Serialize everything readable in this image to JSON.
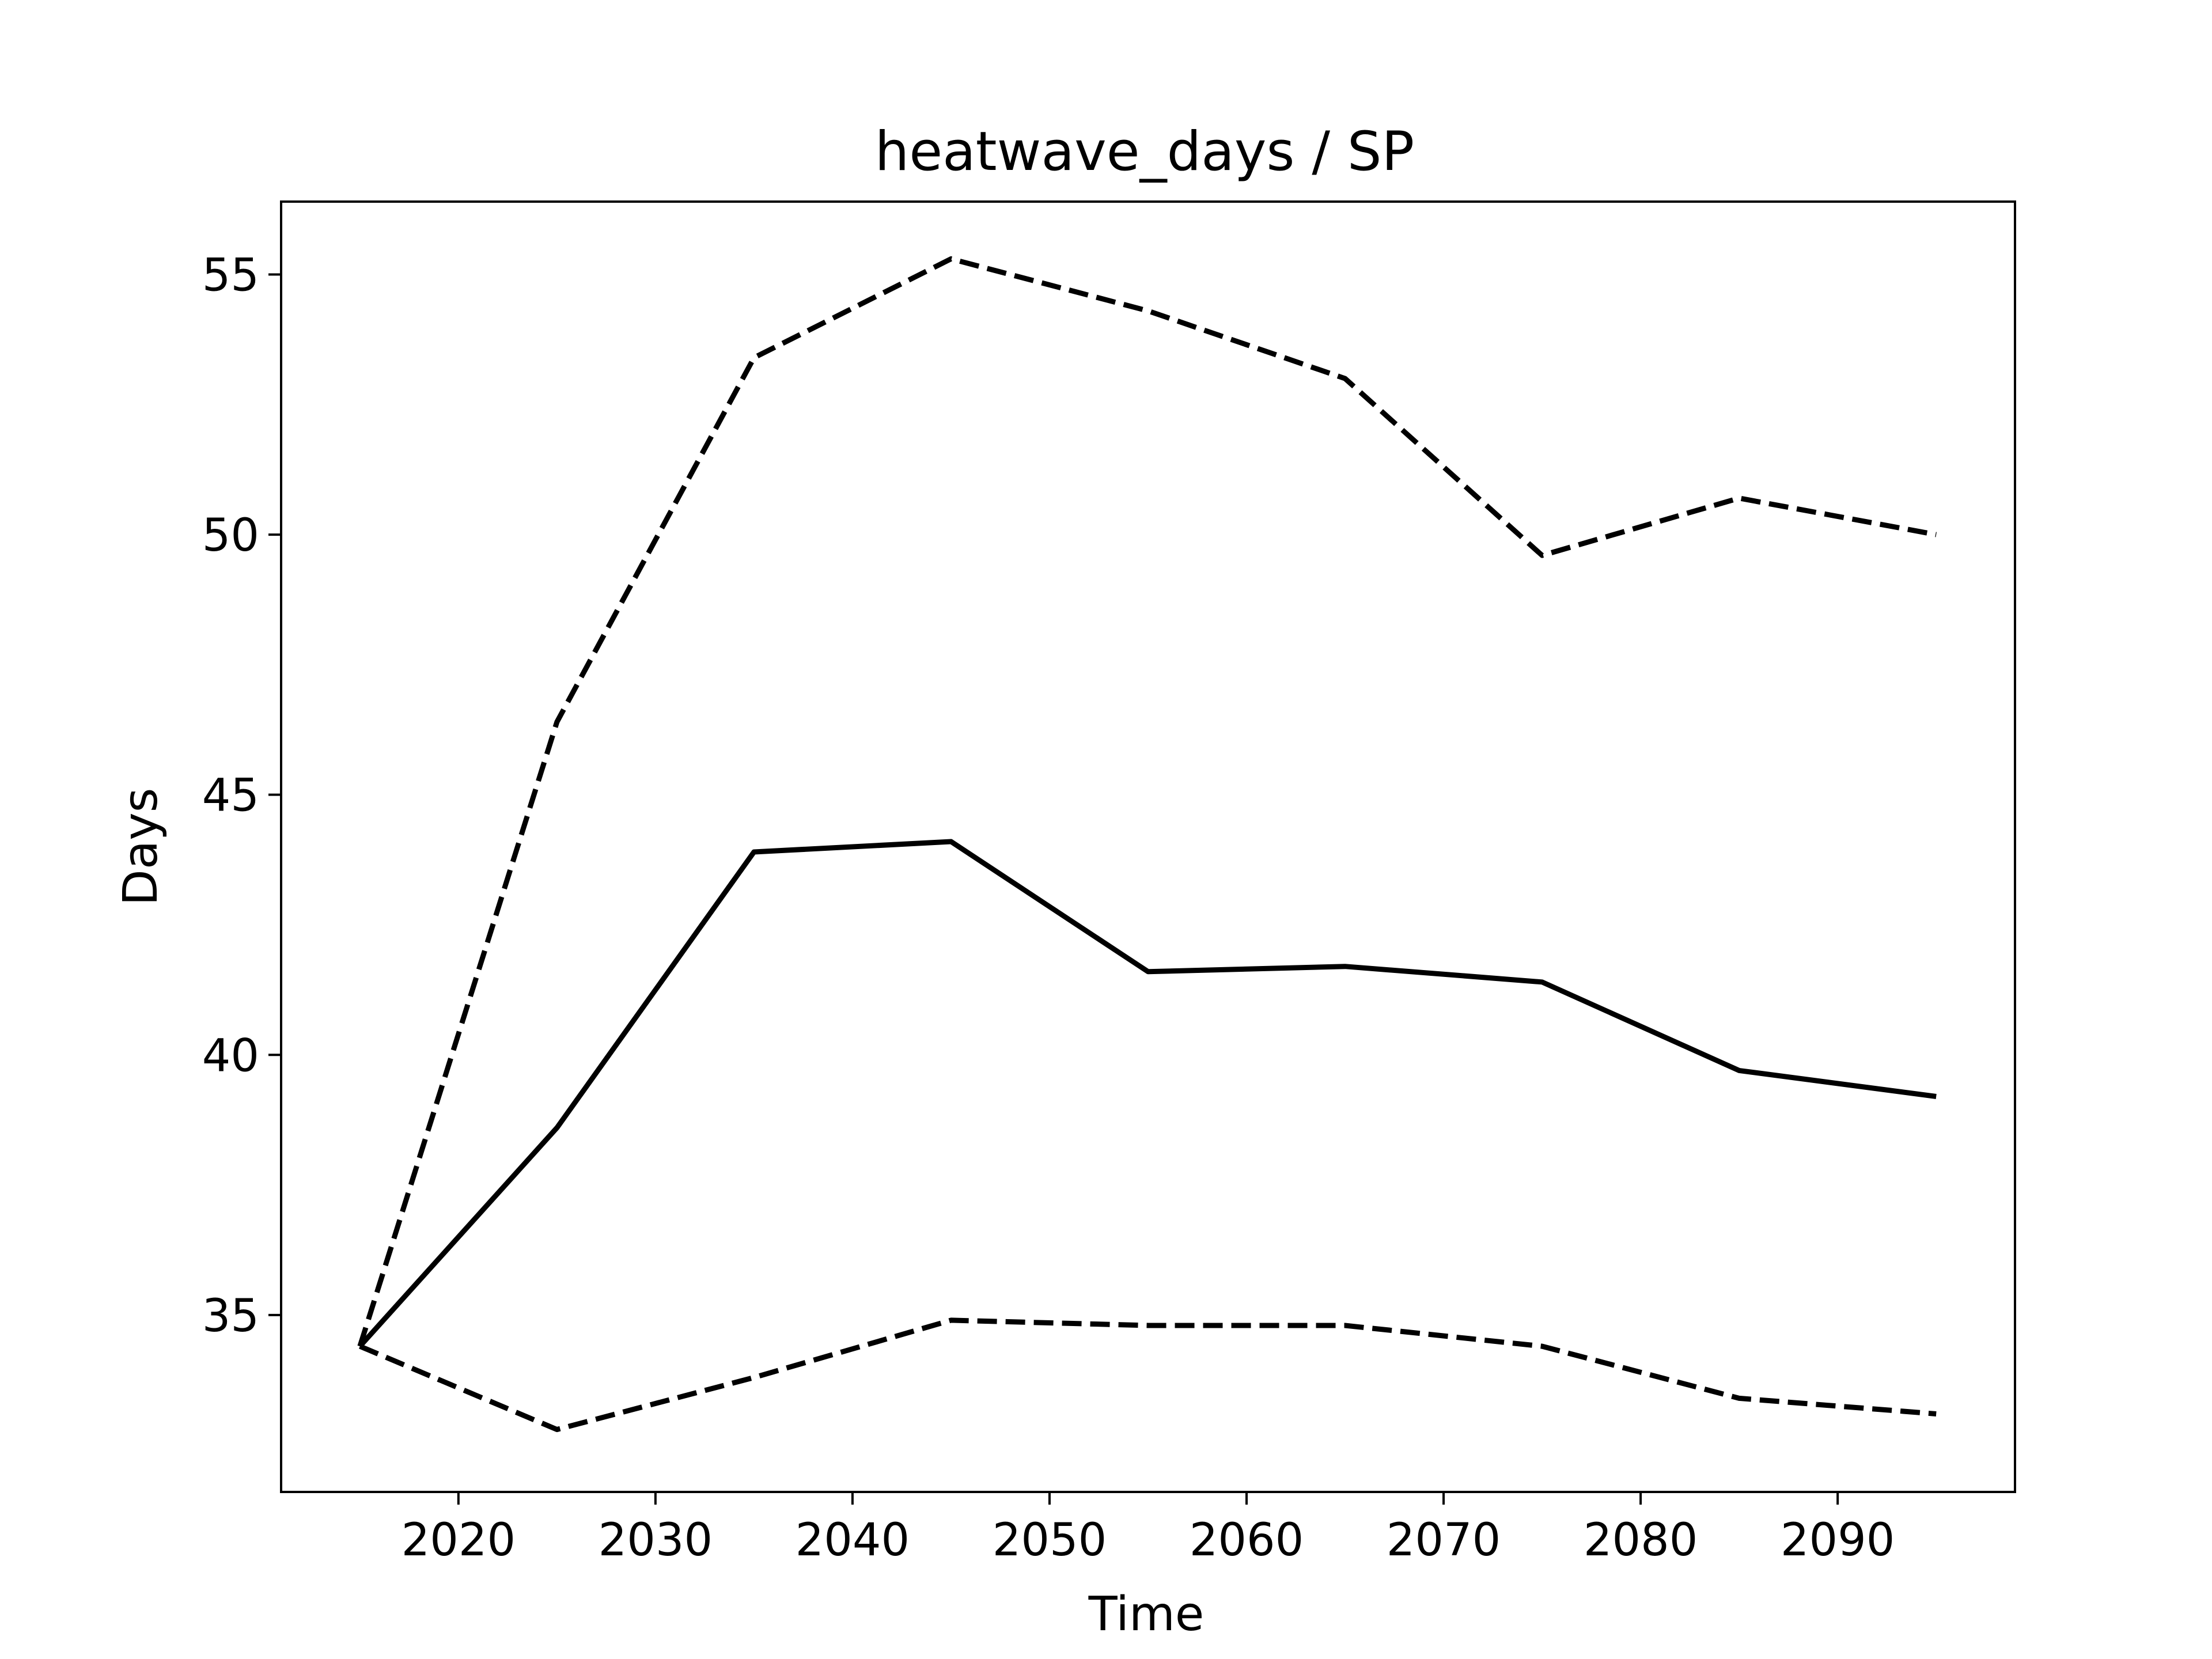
{
  "chart_data": {
    "type": "line",
    "title": "heatwave_days / SP",
    "xlabel": "Time",
    "ylabel": "Days",
    "x": [
      2015,
      2025,
      2035,
      2045,
      2055,
      2065,
      2075,
      2085,
      2095
    ],
    "xlim": [
      2011,
      2099
    ],
    "ylim": [
      31.6,
      56.4
    ],
    "xticks": [
      2020,
      2030,
      2040,
      2050,
      2060,
      2070,
      2080,
      2090
    ],
    "yticks": [
      35,
      40,
      45,
      50,
      55
    ],
    "grid": false,
    "legend": "none",
    "series": [
      {
        "id": "upper",
        "style": "dashed",
        "color": "#000000",
        "values": [
          34.4,
          46.4,
          53.4,
          55.3,
          54.3,
          53.0,
          49.6,
          50.7,
          50.0
        ]
      },
      {
        "id": "median",
        "style": "solid",
        "color": "#000000",
        "values": [
          34.4,
          38.6,
          43.9,
          44.1,
          41.6,
          41.7,
          41.4,
          39.7,
          39.2
        ]
      },
      {
        "id": "lower",
        "style": "dashed",
        "color": "#000000",
        "values": [
          34.4,
          32.8,
          33.8,
          34.9,
          34.8,
          34.8,
          34.4,
          33.4,
          33.1
        ]
      }
    ]
  }
}
